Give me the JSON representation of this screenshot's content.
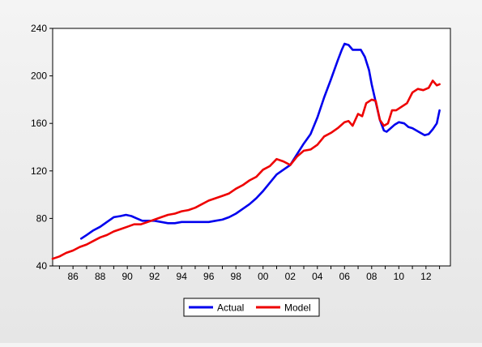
{
  "chart_data": {
    "type": "line",
    "title": "",
    "xlabel": "",
    "ylabel": "",
    "xlim": [
      1984.5,
      2013.8
    ],
    "ylim": [
      40,
      240
    ],
    "y_ticks": [
      40,
      80,
      120,
      160,
      200,
      240
    ],
    "y_tick_labels": [
      "40",
      "80",
      "120",
      "160",
      "200",
      "240"
    ],
    "x_ticks": [
      1986,
      1988,
      1990,
      1992,
      1994,
      1996,
      1998,
      2000,
      2002,
      2004,
      2006,
      2008,
      2010,
      2012
    ],
    "x_tick_labels": [
      "86",
      "88",
      "90",
      "92",
      "94",
      "96",
      "98",
      "00",
      "02",
      "04",
      "06",
      "08",
      "10",
      "12"
    ],
    "grid": false,
    "legend_position": "bottom-center",
    "series": [
      {
        "name": "Actual",
        "color": "#0000ee",
        "x": [
          1986.6,
          1987.0,
          1987.5,
          1988.0,
          1988.5,
          1989.0,
          1989.5,
          1989.9,
          1990.3,
          1990.7,
          1991.1,
          1991.5,
          1992.0,
          1992.5,
          1993.0,
          1993.5,
          1994.0,
          1995.0,
          1996.0,
          1996.5,
          1997.0,
          1997.5,
          1998.0,
          1998.5,
          1999.0,
          1999.5,
          2000.0,
          2000.5,
          2001.0,
          2001.5,
          2002.0,
          2002.5,
          2003.0,
          2003.5,
          2004.0,
          2004.5,
          2005.0,
          2005.5,
          2005.8,
          2006.0,
          2006.3,
          2006.6,
          2006.9,
          2007.2,
          2007.5,
          2007.8,
          2008.0,
          2008.3,
          2008.6,
          2008.9,
          2009.1,
          2009.4,
          2009.7,
          2010.0,
          2010.4,
          2010.7,
          2011.0,
          2011.3,
          2011.6,
          2011.9,
          2012.2,
          2012.5,
          2012.8,
          2013.0
        ],
        "values": [
          63,
          66,
          70,
          73,
          77,
          81,
          82,
          83,
          82,
          80,
          78,
          78,
          78,
          77,
          76,
          76,
          77,
          77,
          77,
          78,
          79,
          81,
          84,
          88,
          92,
          97,
          103,
          110,
          117,
          121,
          125,
          134,
          143,
          151,
          165,
          182,
          197,
          213,
          222,
          227,
          226,
          222,
          222,
          222,
          216,
          205,
          193,
          178,
          163,
          154,
          153,
          156,
          159,
          161,
          160,
          157,
          156,
          154,
          152,
          150,
          151,
          155,
          160,
          171
        ]
      },
      {
        "name": "Model",
        "color": "#ee0000",
        "x": [
          1984.5,
          1985.0,
          1985.5,
          1986.0,
          1986.5,
          1987.0,
          1987.5,
          1988.0,
          1988.5,
          1989.0,
          1989.5,
          1990.0,
          1990.5,
          1991.0,
          1991.5,
          1992.0,
          1992.5,
          1993.0,
          1993.5,
          1994.0,
          1994.5,
          1995.0,
          1995.5,
          1996.0,
          1996.5,
          1997.0,
          1997.5,
          1998.0,
          1998.5,
          1999.0,
          1999.5,
          2000.0,
          2000.5,
          2001.0,
          2001.5,
          2002.0,
          2002.5,
          2003.0,
          2003.5,
          2004.0,
          2004.5,
          2005.0,
          2005.5,
          2006.0,
          2006.3,
          2006.6,
          2007.0,
          2007.3,
          2007.6,
          2008.0,
          2008.3,
          2008.6,
          2008.9,
          2009.2,
          2009.5,
          2009.8,
          2010.2,
          2010.6,
          2011.0,
          2011.4,
          2011.8,
          2012.2,
          2012.5,
          2012.8,
          2013.0
        ],
        "values": [
          46,
          48,
          51,
          53,
          56,
          58,
          61,
          64,
          66,
          69,
          71,
          73,
          75,
          75,
          77,
          79,
          81,
          83,
          84,
          86,
          87,
          89,
          92,
          95,
          97,
          99,
          101,
          105,
          108,
          112,
          115,
          121,
          124,
          130,
          128,
          125,
          132,
          137,
          138,
          142,
          149,
          152,
          156,
          161,
          162,
          158,
          168,
          166,
          177,
          180,
          179,
          163,
          158,
          160,
          171,
          171,
          174,
          177,
          186,
          189,
          188,
          190,
          196,
          192,
          193
        ]
      }
    ]
  }
}
